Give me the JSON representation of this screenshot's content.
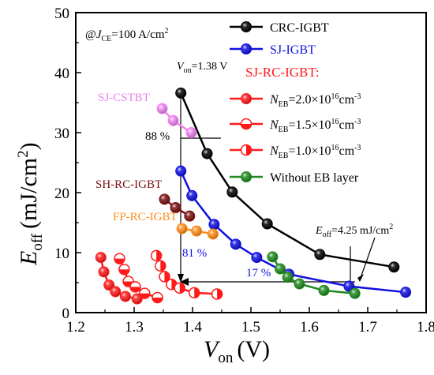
{
  "chart_data": {
    "type": "scatter",
    "xlabel": "V",
    "xlabel_sub": "on",
    "xlabel_unit": "(V)",
    "ylabel": "E",
    "ylabel_sub": "off",
    "ylabel_unit": "(mJ/cm",
    "ylabel_sup": "2",
    "ylabel_close": ")",
    "xlim": [
      1.2,
      1.8
    ],
    "ylim": [
      0,
      50
    ],
    "xticks": [
      "1.2",
      "1.3",
      "1.4",
      "1.5",
      "1.6",
      "1.7",
      "1.8"
    ],
    "yticks": [
      "0",
      "10",
      "20",
      "30",
      "40",
      "50"
    ],
    "grid": false,
    "legend_position": "top-right",
    "condition": {
      "prefix": "@",
      "var": "J",
      "sub": "CE",
      "rest": "=100 A/cm",
      "sup": "2"
    },
    "legend": {
      "title": "SJ-RC-IGBT:",
      "neb_label": "N",
      "neb_sub": "EB",
      "neb_values": [
        "=2.0×10",
        "=1.5×10",
        "=1.0×10"
      ],
      "neb_exp": "16",
      "neb_unit": "cm",
      "neb_unit_exp": "-3"
    },
    "series": [
      {
        "name": "CRC-IGBT",
        "color": "#000000",
        "marker": "full",
        "x": [
          1.38,
          1.425,
          1.468,
          1.528,
          1.618,
          1.745
        ],
        "y": [
          36.6,
          26.5,
          20.1,
          14.8,
          9.7,
          7.6
        ]
      },
      {
        "name": "SJ-IGBT",
        "color": "#1010e0",
        "marker": "full",
        "x": [
          1.38,
          1.399,
          1.437,
          1.474,
          1.51,
          1.565,
          1.668,
          1.765
        ],
        "y": [
          23.6,
          19.5,
          14.7,
          11.4,
          9.2,
          6.4,
          4.4,
          3.4
        ]
      },
      {
        "name": "=2.0×10",
        "color": "#ff1a1a",
        "marker": "full",
        "x": [
          1.243,
          1.248,
          1.257,
          1.268,
          1.285,
          1.305
        ],
        "y": [
          9.2,
          6.8,
          4.6,
          3.5,
          2.7,
          2.3
        ]
      },
      {
        "name": "=1.5×10",
        "color": "#ff1a1a",
        "marker": "half-bottom",
        "x": [
          1.275,
          1.283,
          1.29,
          1.302,
          1.318,
          1.34
        ],
        "y": [
          9.0,
          7.2,
          5.2,
          4.3,
          3.2,
          2.5
        ]
      },
      {
        "name": "=1.0×10",
        "color": "#ff1a1a",
        "marker": "half-right",
        "x": [
          1.338,
          1.345,
          1.352,
          1.364,
          1.378,
          1.403,
          1.442
        ],
        "y": [
          9.5,
          7.8,
          6.0,
          4.7,
          4.1,
          3.3,
          3.1
        ]
      },
      {
        "name": "Without EB layer",
        "color": "#1f8a1f",
        "marker": "full",
        "x": [
          1.537,
          1.55,
          1.563,
          1.583,
          1.625,
          1.678
        ],
        "y": [
          9.3,
          7.3,
          5.9,
          4.8,
          3.7,
          3.2
        ]
      },
      {
        "name": "SJ-CSTBT",
        "color": "#ee82ee",
        "marker": "full",
        "label_text": "SJ-CSTBT",
        "x": [
          1.348,
          1.367,
          1.398
        ],
        "y": [
          34.0,
          32.0,
          30.0
        ]
      },
      {
        "name": "SH-RC-IGBT",
        "color": "#7a1010",
        "marker": "full",
        "label_text": "SH-RC-IGBT",
        "x": [
          1.352,
          1.371,
          1.395
        ],
        "y": [
          18.9,
          17.5,
          16.1
        ]
      },
      {
        "name": "FP-RC-IGBT",
        "color": "#ff8c1a",
        "marker": "full",
        "label_text": "FP-RC-IGBT",
        "x": [
          1.382,
          1.407,
          1.435
        ],
        "y": [
          14.0,
          13.6,
          13.1
        ]
      }
    ],
    "annotations": {
      "von_var": "V",
      "von_sub": "on",
      "von_rest": "=1.38 V",
      "pct_88": "88 %",
      "pct_81": "81 %",
      "pct_17": "17 %",
      "eoff_var": "E",
      "eoff_sub": "off",
      "eoff_rest": "=4.25 mJ/cm",
      "eoff_sup": "2"
    }
  }
}
